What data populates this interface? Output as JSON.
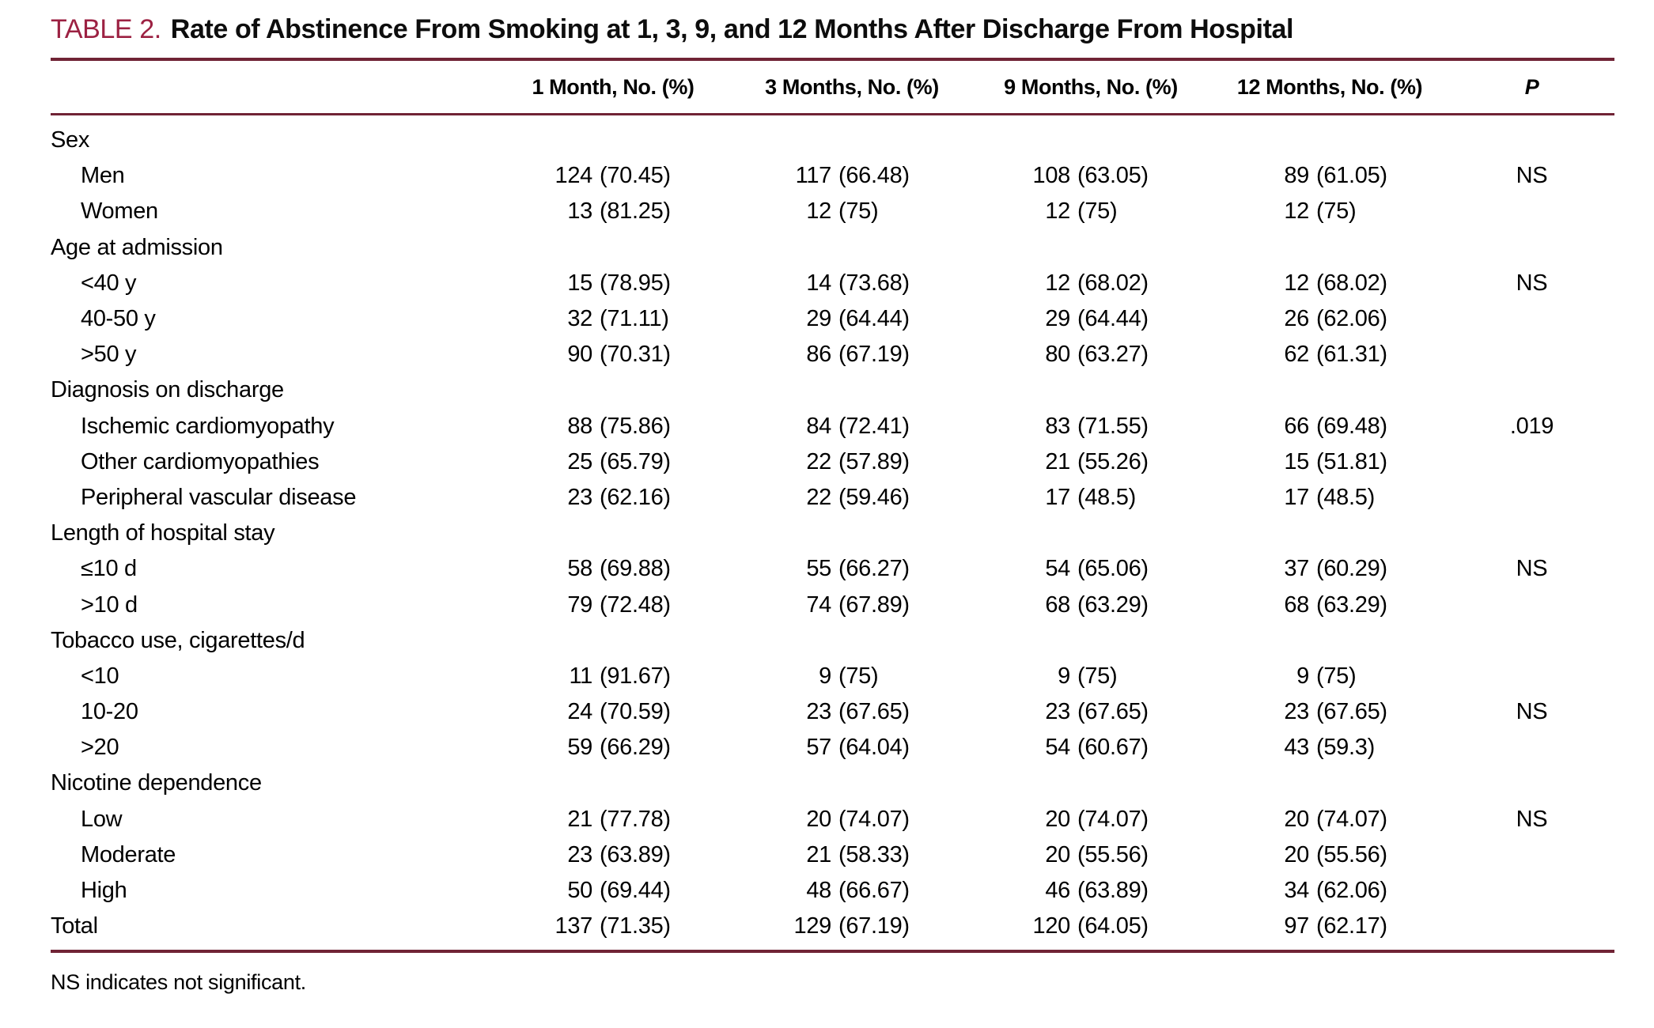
{
  "title": {
    "label": "TABLE 2.",
    "text": "Rate of Abstinence From Smoking at 1, 3, 9, and 12 Months After Discharge From Hospital"
  },
  "table": {
    "columns": [
      "1 Month, No. (%)",
      "3 Months, No. (%)",
      "9 Months, No. (%)",
      "12 Months, No. (%)",
      "P"
    ],
    "column_keys": [
      "1-month",
      "3-months",
      "9-months",
      "12-months"
    ],
    "rows": [
      {
        "group": true,
        "label": "Sex"
      },
      {
        "label": "Men",
        "indent": 1,
        "cells": [
          [
            "124",
            "(70.45)"
          ],
          [
            "117",
            "(66.48)"
          ],
          [
            "108",
            "(63.05)"
          ],
          [
            "89",
            "(61.05)"
          ]
        ],
        "p": "NS"
      },
      {
        "label": "Women",
        "indent": 1,
        "cells": [
          [
            "13",
            "(81.25)"
          ],
          [
            "12",
            "(75)"
          ],
          [
            "12",
            "(75)"
          ],
          [
            "12",
            "(75)"
          ]
        ],
        "p": ""
      },
      {
        "group": true,
        "label": "Age at admission"
      },
      {
        "label": "<40 y",
        "indent": 1,
        "cells": [
          [
            "15",
            "(78.95)"
          ],
          [
            "14",
            "(73.68)"
          ],
          [
            "12",
            "(68.02)"
          ],
          [
            "12",
            "(68.02)"
          ]
        ],
        "p": "NS"
      },
      {
        "label": "40-50 y",
        "indent": 1,
        "cells": [
          [
            "32",
            "(71.11)"
          ],
          [
            "29",
            "(64.44)"
          ],
          [
            "29",
            "(64.44)"
          ],
          [
            "26",
            "(62.06)"
          ]
        ],
        "p": ""
      },
      {
        "label": ">50 y",
        "indent": 1,
        "cells": [
          [
            "90",
            "(70.31)"
          ],
          [
            "86",
            "(67.19)"
          ],
          [
            "80",
            "(63.27)"
          ],
          [
            "62",
            "(61.31)"
          ]
        ],
        "p": ""
      },
      {
        "group": true,
        "label": "Diagnosis on discharge"
      },
      {
        "label": "Ischemic cardiomyopathy",
        "indent": 1,
        "cells": [
          [
            "88",
            "(75.86)"
          ],
          [
            "84",
            "(72.41)"
          ],
          [
            "83",
            "(71.55)"
          ],
          [
            "66",
            "(69.48)"
          ]
        ],
        "p": ".019"
      },
      {
        "label": "Other cardiomyopathies",
        "indent": 1,
        "cells": [
          [
            "25",
            "(65.79)"
          ],
          [
            "22",
            "(57.89)"
          ],
          [
            "21",
            "(55.26)"
          ],
          [
            "15",
            "(51.81)"
          ]
        ],
        "p": ""
      },
      {
        "label": "Peripheral vascular disease",
        "indent": 1,
        "cells": [
          [
            "23",
            "(62.16)"
          ],
          [
            "22",
            "(59.46)"
          ],
          [
            "17",
            "(48.5)"
          ],
          [
            "17",
            "(48.5)"
          ]
        ],
        "p": ""
      },
      {
        "group": true,
        "label": "Length of hospital stay"
      },
      {
        "label": "≤10 d",
        "indent": 1,
        "cells": [
          [
            "58",
            "(69.88)"
          ],
          [
            "55",
            "(66.27)"
          ],
          [
            "54",
            "(65.06)"
          ],
          [
            "37",
            "(60.29)"
          ]
        ],
        "p": "NS"
      },
      {
        "label": ">10 d",
        "indent": 1,
        "cells": [
          [
            "79",
            "(72.48)"
          ],
          [
            "74",
            "(67.89)"
          ],
          [
            "68",
            "(63.29)"
          ],
          [
            "68",
            "(63.29)"
          ]
        ],
        "p": ""
      },
      {
        "group": true,
        "label": "Tobacco use, cigarettes/d"
      },
      {
        "label": "<10",
        "indent": 1,
        "cells": [
          [
            "11",
            "(91.67)"
          ],
          [
            "9",
            "(75)"
          ],
          [
            "9",
            "(75)"
          ],
          [
            "9",
            "(75)"
          ]
        ],
        "p": ""
      },
      {
        "label": "10-20",
        "indent": 1,
        "cells": [
          [
            "24",
            "(70.59)"
          ],
          [
            "23",
            "(67.65)"
          ],
          [
            "23",
            "(67.65)"
          ],
          [
            "23",
            "(67.65)"
          ]
        ],
        "p": "NS"
      },
      {
        "label": ">20",
        "indent": 1,
        "cells": [
          [
            "59",
            "(66.29)"
          ],
          [
            "57",
            "(64.04)"
          ],
          [
            "54",
            "(60.67)"
          ],
          [
            "43",
            "(59.3)"
          ]
        ],
        "p": ""
      },
      {
        "group": true,
        "label": "Nicotine dependence"
      },
      {
        "label": "Low",
        "indent": 1,
        "cells": [
          [
            "21",
            "(77.78)"
          ],
          [
            "20",
            "(74.07)"
          ],
          [
            "20",
            "(74.07)"
          ],
          [
            "20",
            "(74.07)"
          ]
        ],
        "p": "NS"
      },
      {
        "label": "Moderate",
        "indent": 1,
        "cells": [
          [
            "23",
            "(63.89)"
          ],
          [
            "21",
            "(58.33)"
          ],
          [
            "20",
            "(55.56)"
          ],
          [
            "20",
            "(55.56)"
          ]
        ],
        "p": ""
      },
      {
        "label": "High",
        "indent": 1,
        "cells": [
          [
            "50",
            "(69.44)"
          ],
          [
            "48",
            "(66.67)"
          ],
          [
            "46",
            "(63.89)"
          ],
          [
            "34",
            "(62.06)"
          ]
        ],
        "p": ""
      },
      {
        "label": "Total",
        "indent": 0,
        "cells": [
          [
            "137",
            "(71.35)"
          ],
          [
            "129",
            "(67.19)"
          ],
          [
            "120",
            "(64.05)"
          ],
          [
            "97",
            "(62.17)"
          ]
        ],
        "p": ""
      }
    ]
  },
  "footnote": "NS indicates not significant.",
  "colors": {
    "accent_maroon": "#9c2142",
    "rule_maroon": "#702335",
    "text_black": "#000000"
  }
}
